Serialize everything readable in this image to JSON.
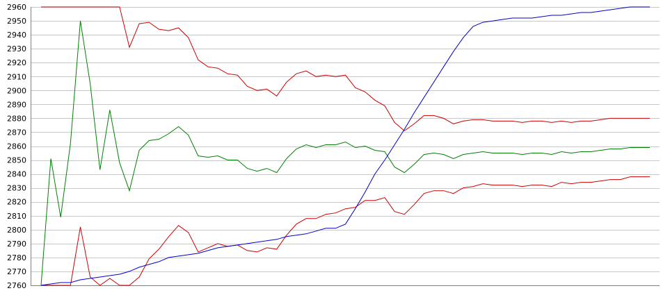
{
  "chart_data": {
    "type": "line",
    "title": "",
    "xlabel": "",
    "ylabel": "",
    "ylim": [
      2760,
      2960
    ],
    "yticks": [
      2760,
      2770,
      2780,
      2790,
      2800,
      2810,
      2820,
      2830,
      2840,
      2850,
      2860,
      2870,
      2880,
      2890,
      2900,
      2910,
      2920,
      2930,
      2940,
      2950,
      2960
    ],
    "grid": true,
    "legend": "none",
    "x": [
      0,
      1,
      2,
      3,
      4,
      5,
      6,
      7,
      8,
      9,
      10,
      11,
      12,
      13,
      14,
      15,
      16,
      17,
      18,
      19,
      20,
      21,
      22,
      23,
      24,
      25,
      26,
      27,
      28,
      29,
      30,
      31,
      32,
      33,
      34,
      35,
      36,
      37,
      38,
      39,
      40,
      41,
      42,
      43,
      44,
      45,
      46,
      47,
      48,
      49,
      50,
      51,
      52,
      53,
      54,
      55,
      56,
      57,
      58,
      59,
      60,
      61,
      62
    ],
    "series": [
      {
        "color": "#cc0000",
        "values": [
          2960,
          2960,
          2960,
          2960,
          2960,
          2960,
          2960,
          2960,
          2960,
          2931,
          2948,
          2949,
          2944,
          2943,
          2945,
          2938,
          2922,
          2917,
          2916,
          2912,
          2911,
          2903,
          2900,
          2901,
          2896,
          2906,
          2912,
          2914,
          2910,
          2911,
          2910,
          2911,
          2902,
          2899,
          2893,
          2889,
          2877,
          2871,
          2876,
          2882,
          2882,
          2880,
          2876,
          2878,
          2879,
          2879,
          2878,
          2878,
          2878,
          2877,
          2878,
          2878,
          2877,
          2878,
          2877,
          2878,
          2878,
          2879,
          2880,
          2880,
          2880,
          2880,
          2880
        ]
      },
      {
        "color": "#cc0000",
        "values": [
          2760,
          2760,
          2760,
          2760,
          2802,
          2766,
          2760,
          2765,
          2760,
          2760,
          2766,
          2779,
          2786,
          2795,
          2803,
          2798,
          2784,
          2787,
          2790,
          2788,
          2789,
          2785,
          2784,
          2787,
          2786,
          2796,
          2804,
          2808,
          2808,
          2811,
          2812,
          2815,
          2816,
          2821,
          2821,
          2823,
          2813,
          2811,
          2818,
          2826,
          2828,
          2828,
          2826,
          2830,
          2831,
          2833,
          2832,
          2832,
          2832,
          2831,
          2832,
          2832,
          2831,
          2834,
          2833,
          2834,
          2834,
          2835,
          2836,
          2836,
          2838,
          2838,
          2838
        ]
      },
      {
        "color": "#008000",
        "values": [
          2760,
          2851,
          2809,
          2862,
          2950,
          2905,
          2843,
          2886,
          2848,
          2828,
          2857,
          2864,
          2865,
          2869,
          2874,
          2868,
          2853,
          2852,
          2853,
          2850,
          2850,
          2844,
          2842,
          2844,
          2841,
          2851,
          2858,
          2861,
          2859,
          2861,
          2861,
          2863,
          2859,
          2860,
          2857,
          2856,
          2845,
          2841,
          2847,
          2854,
          2855,
          2854,
          2851,
          2854,
          2855,
          2856,
          2855,
          2855,
          2855,
          2854,
          2855,
          2855,
          2854,
          2856,
          2855,
          2856,
          2856,
          2857,
          2858,
          2858,
          2859,
          2859,
          2859
        ]
      },
      {
        "color": "#0000cc",
        "values": [
          2760,
          2761,
          2762,
          2762,
          2764,
          2765,
          2766,
          2767,
          2768,
          2770,
          2773,
          2775,
          2777,
          2780,
          2781,
          2782,
          2783,
          2785,
          2787,
          2788,
          2789,
          2790,
          2791,
          2792,
          2793,
          2795,
          2796,
          2797,
          2799,
          2801,
          2801,
          2804,
          2815,
          2827,
          2840,
          2850,
          2861,
          2872,
          2884,
          2895,
          2906,
          2917,
          2928,
          2938,
          2946,
          2949,
          2950,
          2951,
          2952,
          2952,
          2952,
          2953,
          2954,
          2954,
          2955,
          2956,
          2956,
          2957,
          2958,
          2959,
          2960,
          2960,
          2960
        ]
      }
    ]
  }
}
